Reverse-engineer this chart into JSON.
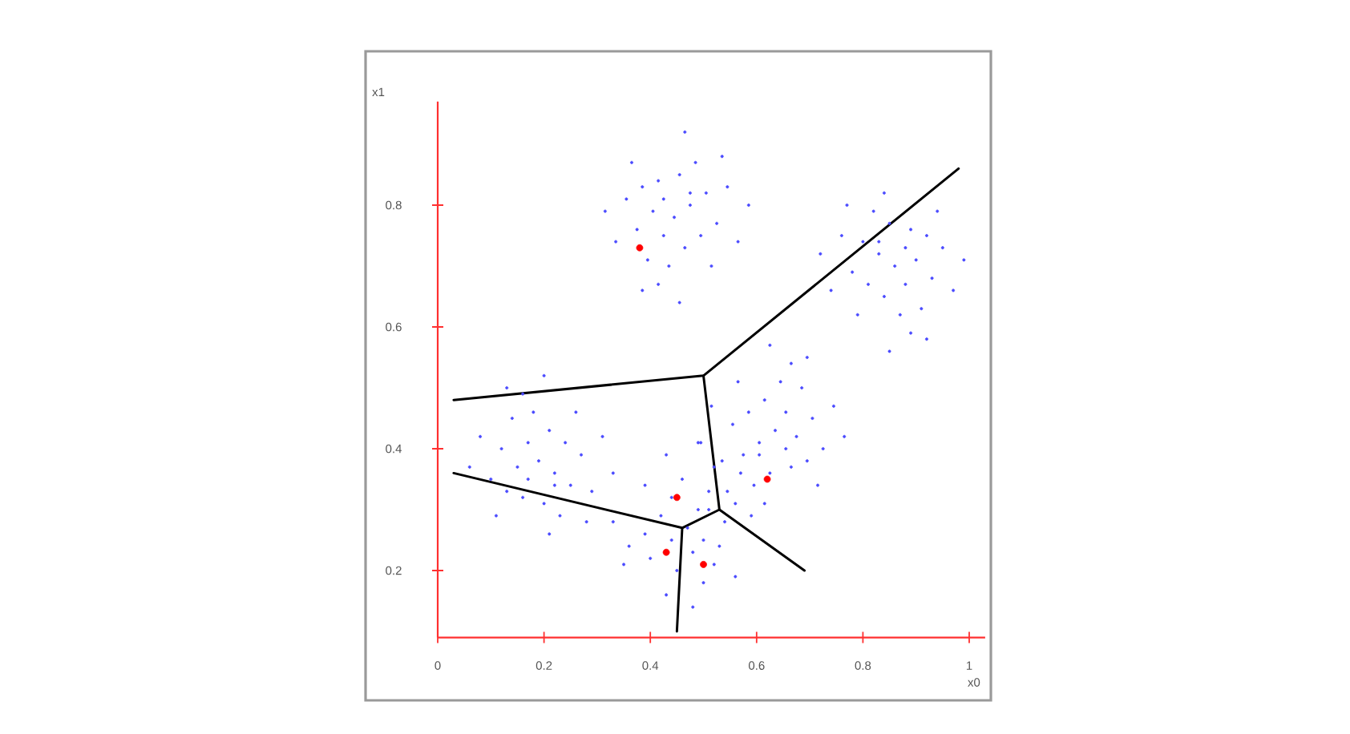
{
  "chart_data": {
    "type": "scatter",
    "xlabel": "x0",
    "ylabel": "x1",
    "xlim": [
      0,
      1.03
    ],
    "ylim": [
      0.09,
      0.97
    ],
    "xticks": [
      0,
      0.2,
      0.4,
      0.6,
      0.8,
      1
    ],
    "yticks": [
      0.2,
      0.4,
      0.6,
      0.8
    ],
    "marker": "circle",
    "series": [
      {
        "color": "#4a4aff",
        "x": [
          0.445,
          0.475,
          0.405,
          0.465,
          0.425,
          0.505,
          0.375,
          0.455,
          0.415,
          0.495,
          0.385,
          0.525,
          0.435,
          0.485,
          0.355,
          0.545,
          0.395,
          0.515,
          0.335,
          0.465,
          0.415,
          0.565,
          0.365,
          0.535,
          0.315,
          0.455,
          0.585,
          0.385,
          0.475,
          0.425,
          0.86,
          0.83,
          0.9,
          0.84,
          0.88,
          0.8,
          0.93,
          0.85,
          0.89,
          0.81,
          0.92,
          0.78,
          0.87,
          0.82,
          0.95,
          0.76,
          0.91,
          0.79,
          0.97,
          0.84,
          0.89,
          0.74,
          0.94,
          0.77,
          0.99,
          0.85,
          0.72,
          0.92,
          0.83,
          0.88,
          0.19,
          0.22,
          0.15,
          0.21,
          0.17,
          0.25,
          0.12,
          0.2,
          0.16,
          0.24,
          0.13,
          0.27,
          0.18,
          0.23,
          0.1,
          0.29,
          0.14,
          0.26,
          0.08,
          0.21,
          0.16,
          0.31,
          0.11,
          0.28,
          0.06,
          0.2,
          0.33,
          0.13,
          0.22,
          0.17,
          0.635,
          0.605,
          0.675,
          0.615,
          0.655,
          0.575,
          0.705,
          0.625,
          0.665,
          0.585,
          0.695,
          0.555,
          0.645,
          0.595,
          0.725,
          0.535,
          0.685,
          0.565,
          0.745,
          0.615,
          0.665,
          0.515,
          0.715,
          0.545,
          0.765,
          0.625,
          0.495,
          0.695,
          0.605,
          0.655,
          0.47,
          0.49,
          0.48,
          0.42,
          0.44,
          0.51,
          0.45,
          0.54,
          0.53,
          0.44,
          0.52,
          0.46,
          0.39,
          0.56,
          0.5,
          0.52,
          0.4,
          0.39,
          0.43,
          0.59,
          0.36,
          0.43,
          0.56,
          0.57,
          0.48,
          0.33,
          0.49,
          0.35,
          0.51,
          0.5
        ],
        "values": [
          0.78,
          0.8,
          0.79,
          0.73,
          0.75,
          0.82,
          0.76,
          0.85,
          0.84,
          0.75,
          0.83,
          0.77,
          0.7,
          0.87,
          0.81,
          0.83,
          0.71,
          0.7,
          0.74,
          0.92,
          0.67,
          0.74,
          0.87,
          0.88,
          0.79,
          0.64,
          0.8,
          0.66,
          0.82,
          0.81,
          0.7,
          0.72,
          0.71,
          0.65,
          0.67,
          0.74,
          0.68,
          0.77,
          0.76,
          0.67,
          0.75,
          0.69,
          0.62,
          0.79,
          0.73,
          0.75,
          0.63,
          0.62,
          0.66,
          0.82,
          0.59,
          0.66,
          0.79,
          0.8,
          0.71,
          0.56,
          0.72,
          0.58,
          0.74,
          0.73,
          0.38,
          0.36,
          0.37,
          0.43,
          0.41,
          0.34,
          0.4,
          0.31,
          0.32,
          0.41,
          0.33,
          0.39,
          0.46,
          0.29,
          0.35,
          0.33,
          0.45,
          0.46,
          0.42,
          0.26,
          0.49,
          0.42,
          0.29,
          0.28,
          0.37,
          0.52,
          0.36,
          0.5,
          0.34,
          0.35,
          0.43,
          0.41,
          0.42,
          0.48,
          0.46,
          0.39,
          0.45,
          0.36,
          0.37,
          0.46,
          0.38,
          0.44,
          0.51,
          0.34,
          0.4,
          0.38,
          0.5,
          0.51,
          0.47,
          0.31,
          0.54,
          0.47,
          0.34,
          0.33,
          0.42,
          0.57,
          0.41,
          0.55,
          0.39,
          0.4,
          0.27,
          0.3,
          0.23,
          0.29,
          0.25,
          0.33,
          0.2,
          0.28,
          0.24,
          0.32,
          0.21,
          0.35,
          0.26,
          0.31,
          0.18,
          0.37,
          0.22,
          0.34,
          0.16,
          0.29,
          0.24,
          0.39,
          0.19,
          0.36,
          0.14,
          0.28,
          0.41,
          0.21,
          0.3,
          0.25
        ]
      },
      {
        "type": "line",
        "marker": "none",
        "color": "#000000",
        "x": [
          0.03,
          0.5,
          0.98
        ],
        "values": [
          0.48,
          0.52,
          0.86
        ]
      },
      {
        "type": "line",
        "marker": "none",
        "color": "#000000",
        "x": [
          0.5,
          0.53,
          0.69
        ],
        "values": [
          0.52,
          0.3,
          0.2
        ]
      },
      {
        "type": "line",
        "marker": "none",
        "color": "#000000",
        "x": [
          0.03,
          0.46,
          0.45
        ],
        "values": [
          0.36,
          0.27,
          0.1
        ]
      },
      {
        "type": "line",
        "marker": "none",
        "color": "#000000",
        "x": [
          0.46,
          0.53
        ],
        "values": [
          0.27,
          0.3
        ]
      },
      {
        "color": "#ff0000",
        "x": [
          0.38,
          0.45,
          0.43,
          0.5,
          0.62
        ],
        "values": [
          0.73,
          0.32,
          0.23,
          0.21,
          0.35
        ]
      }
    ]
  }
}
